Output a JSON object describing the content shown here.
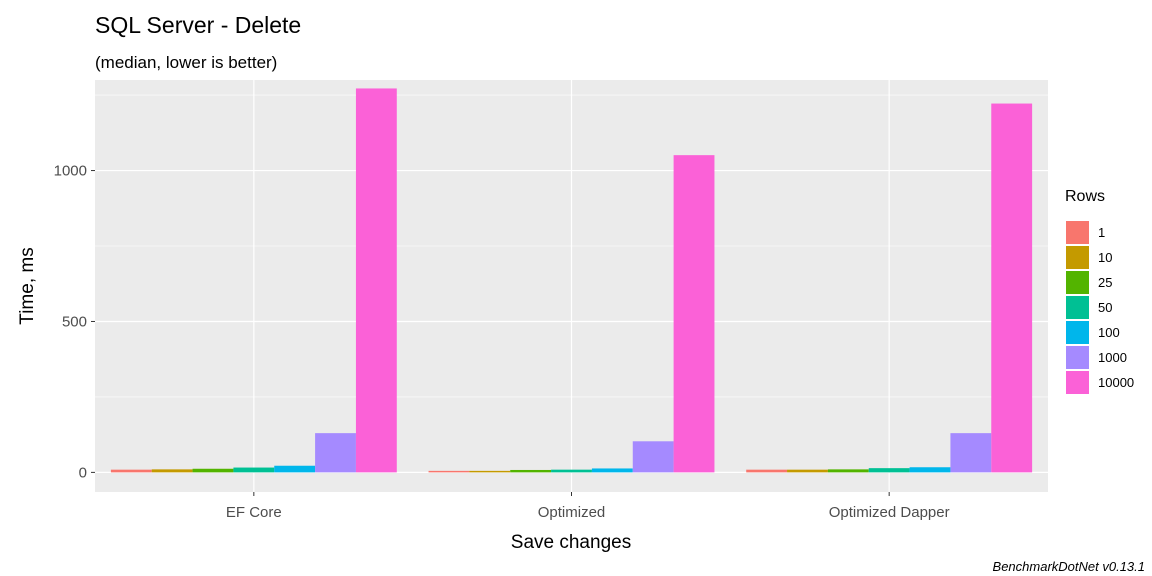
{
  "chart_data": {
    "type": "bar",
    "title": "SQL Server - Delete",
    "subtitle": "(median, lower is better)",
    "xlabel": "Save changes",
    "ylabel": "Time, ms",
    "categories": [
      "EF Core",
      "Optimized",
      "Optimized Dapper"
    ],
    "ylim": [
      -65,
      1300
    ],
    "yticks": [
      0,
      500,
      1000
    ],
    "grid": true,
    "legend": {
      "title": "Rows",
      "placement": "right"
    },
    "caption": "BenchmarkDotNet v0.13.1",
    "series": [
      {
        "name": "1",
        "color": "#F8766D",
        "values": [
          9,
          5,
          9
        ]
      },
      {
        "name": "10",
        "color": "#C49A00",
        "values": [
          10,
          5,
          9
        ]
      },
      {
        "name": "25",
        "color": "#53B400",
        "values": [
          12,
          8,
          10
        ]
      },
      {
        "name": "50",
        "color": "#00C094",
        "values": [
          16,
          9,
          14
        ]
      },
      {
        "name": "100",
        "color": "#00B6EB",
        "values": [
          22,
          13,
          17
        ]
      },
      {
        "name": "1000",
        "color": "#A58AFF",
        "values": [
          130,
          103,
          130
        ]
      },
      {
        "name": "10000",
        "color": "#FB61D7",
        "values": [
          1272,
          1051,
          1222
        ]
      }
    ]
  }
}
